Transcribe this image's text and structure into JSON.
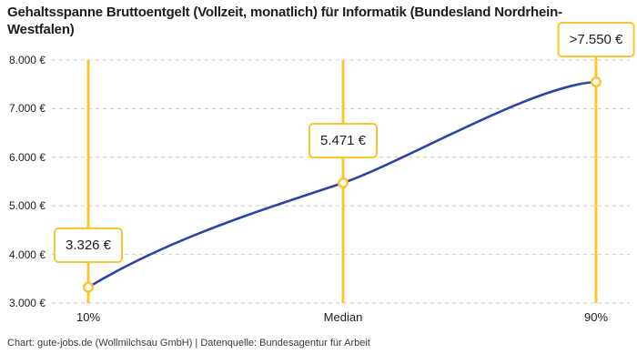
{
  "title": "Gehaltsspanne Bruttoentgelt (Vollzeit, monatlich) für Informatik (Bundesland Nordrhein-Westfalen)",
  "footer": "Chart: gute-jobs.de (Wollmilchsau GmbH) | Datenquelle: Bundesagentur für Arbeit",
  "chart_data": {
    "type": "line",
    "title": "Gehaltsspanne Bruttoentgelt (Vollzeit, monatlich) für Informatik (Bundesland Nordrhein-Westfalen)",
    "categories": [
      "10%",
      "Median",
      "90%"
    ],
    "values": [
      3326,
      5471,
      7550
    ],
    "point_labels": [
      "3.326 €",
      "5.471 €",
      ">7.550 €"
    ],
    "yticks": [
      {
        "value": 8000,
        "label": "8.000 €"
      },
      {
        "value": 7000,
        "label": "7.000 €"
      },
      {
        "value": 6000,
        "label": "6.000 €"
      },
      {
        "value": 5000,
        "label": "5.000 €"
      },
      {
        "value": 4000,
        "label": "4.000 €"
      },
      {
        "value": 3000,
        "label": "3.000 €"
      }
    ],
    "ylim": [
      3000,
      8000
    ],
    "xlabel": "",
    "ylabel": "",
    "grid": "horizontal-dashed",
    "legend": "none",
    "marker": "open-circle",
    "colors": {
      "line": "#2b45a7",
      "accent": "#fdc42c",
      "grid": "#cccccc",
      "label_text": "#1d1d1d",
      "marker_fill": "#ffffff"
    },
    "source": "Chart: gute-jobs.de (Wollmilchsau GmbH) | Datenquelle: Bundesagentur für Arbeit"
  }
}
